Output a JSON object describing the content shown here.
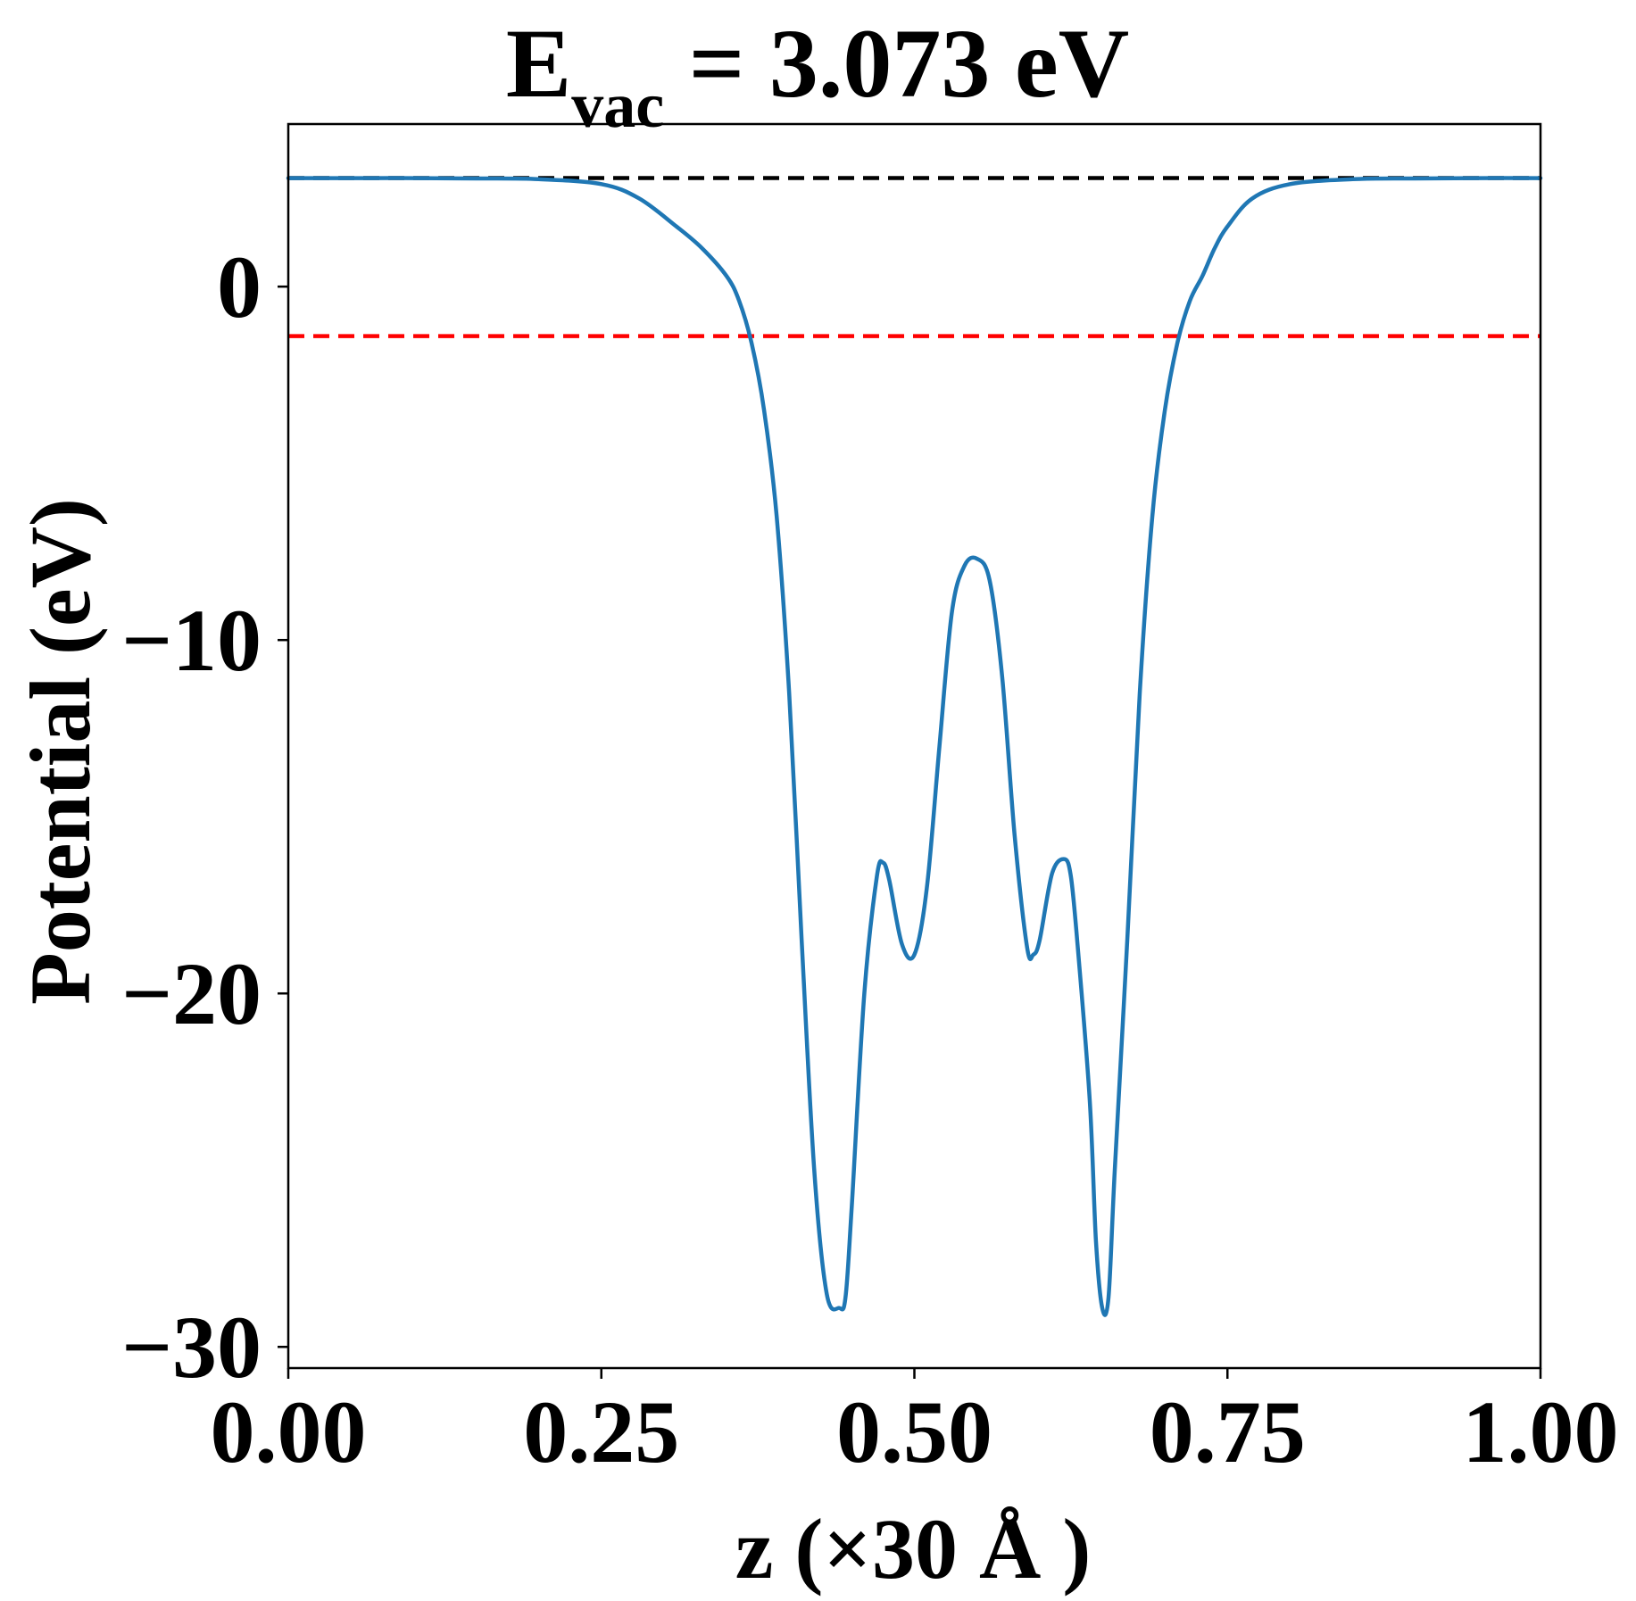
{
  "chart_data": {
    "type": "line",
    "title": {
      "prefix": "E",
      "subscript": "vac",
      "suffix": " = 3.073 eV"
    },
    "xlabel": "z (×30 Å )",
    "ylabel": "Potential (eV)",
    "xlim": [
      0.0,
      1.0
    ],
    "ylim": [
      -30.6,
      4.6
    ],
    "x_ticks": [
      0.0,
      0.25,
      0.5,
      0.75,
      1.0
    ],
    "x_tick_labels": [
      "0.00",
      "0.25",
      "0.50",
      "0.75",
      "1.00"
    ],
    "y_ticks": [
      0,
      -10,
      -20,
      -30
    ],
    "y_tick_labels": [
      "0",
      "−10",
      "−20",
      "−30"
    ],
    "grid": false,
    "series": [
      {
        "color": "#1f77b4",
        "x": [
          0.0,
          0.05,
          0.1,
          0.15,
          0.2,
          0.25,
          0.28,
          0.31,
          0.33,
          0.35,
          0.36,
          0.37,
          0.38,
          0.39,
          0.4,
          0.41,
          0.42,
          0.43,
          0.44,
          0.445,
          0.45,
          0.46,
          0.47,
          0.475,
          0.48,
          0.49,
          0.5,
          0.51,
          0.52,
          0.53,
          0.54,
          0.55,
          0.56,
          0.57,
          0.58,
          0.59,
          0.595,
          0.6,
          0.61,
          0.62,
          0.625,
          0.63,
          0.64,
          0.645,
          0.65,
          0.655,
          0.66,
          0.67,
          0.68,
          0.69,
          0.7,
          0.71,
          0.72,
          0.73,
          0.74,
          0.75,
          0.77,
          0.8,
          0.85,
          0.9,
          0.95,
          1.0
        ],
        "values": [
          3.07,
          3.07,
          3.07,
          3.06,
          3.04,
          2.9,
          2.5,
          1.7,
          1.1,
          0.3,
          -0.4,
          -1.6,
          -3.5,
          -6.5,
          -11.5,
          -18.5,
          -25.0,
          -28.5,
          -28.9,
          -28.6,
          -26.0,
          -20.0,
          -16.7,
          -16.3,
          -16.8,
          -18.6,
          -18.9,
          -17.0,
          -13.0,
          -9.2,
          -7.9,
          -7.7,
          -8.3,
          -11.0,
          -15.5,
          -18.7,
          -18.9,
          -18.5,
          -16.6,
          -16.2,
          -16.7,
          -18.5,
          -23.0,
          -27.0,
          -28.9,
          -28.6,
          -25.0,
          -18.5,
          -11.5,
          -6.5,
          -3.5,
          -1.6,
          -0.4,
          0.3,
          1.1,
          1.7,
          2.5,
          2.9,
          3.04,
          3.06,
          3.07,
          3.07
        ]
      }
    ],
    "reference_lines": [
      {
        "y": 3.073,
        "color": "#000000",
        "style": "dashed"
      },
      {
        "y": -1.4,
        "color": "#ff0000",
        "style": "dashed"
      }
    ]
  }
}
